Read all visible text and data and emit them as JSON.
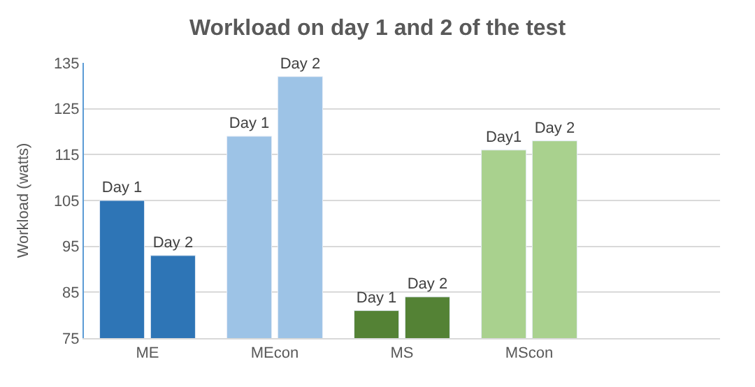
{
  "chart_data": {
    "type": "bar",
    "title": "Workload on day 1 and 2 of the test",
    "ylabel": "Workload (watts)",
    "categories": [
      "ME",
      "MEcon",
      "MS",
      "MScon",
      null
    ],
    "series": [
      {
        "colors": [
          "#2e75b6",
          "#9dc3e6",
          "#548235",
          "#a9d18e",
          null
        ],
        "values": [
          105,
          119,
          81,
          116,
          null
        ],
        "value_labels": [
          "Day 1",
          "Day 1",
          "Day 1",
          "Day1",
          null
        ]
      },
      {
        "colors": [
          "#2e75b6",
          "#9dc3e6",
          "#548235",
          "#a9d18e",
          null
        ],
        "values": [
          93,
          132,
          84,
          118,
          null
        ],
        "value_labels": [
          "Day 2",
          "Day 2",
          "Day 2",
          "Day 2",
          null
        ]
      }
    ],
    "ylim": [
      75,
      135
    ],
    "yticks": [
      75,
      85,
      95,
      105,
      115,
      125,
      135
    ],
    "grid": "y",
    "legend": false
  }
}
